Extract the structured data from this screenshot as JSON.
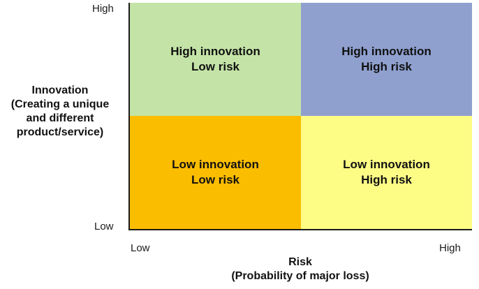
{
  "axes": {
    "y": {
      "title_lines": [
        "Innovation",
        "(Creating a unique",
        "and different",
        "product/service)"
      ],
      "high": "High",
      "low": "Low"
    },
    "x": {
      "title_lines": [
        "Risk",
        "(Probability of major loss)"
      ],
      "low": "Low",
      "high": "High"
    }
  },
  "quadrants": {
    "top_left": {
      "line1": "High innovation",
      "line2": "Low risk",
      "color": "#c4e4a7"
    },
    "top_right": {
      "line1": "High innovation",
      "line2": "High risk",
      "color": "#8fa0cf"
    },
    "bottom_left": {
      "line1": "Low innovation",
      "line2": "Low risk",
      "color": "#fbbd00"
    },
    "bottom_right": {
      "line1": "Low innovation",
      "line2": "High risk",
      "color": "#fdfd86"
    }
  }
}
